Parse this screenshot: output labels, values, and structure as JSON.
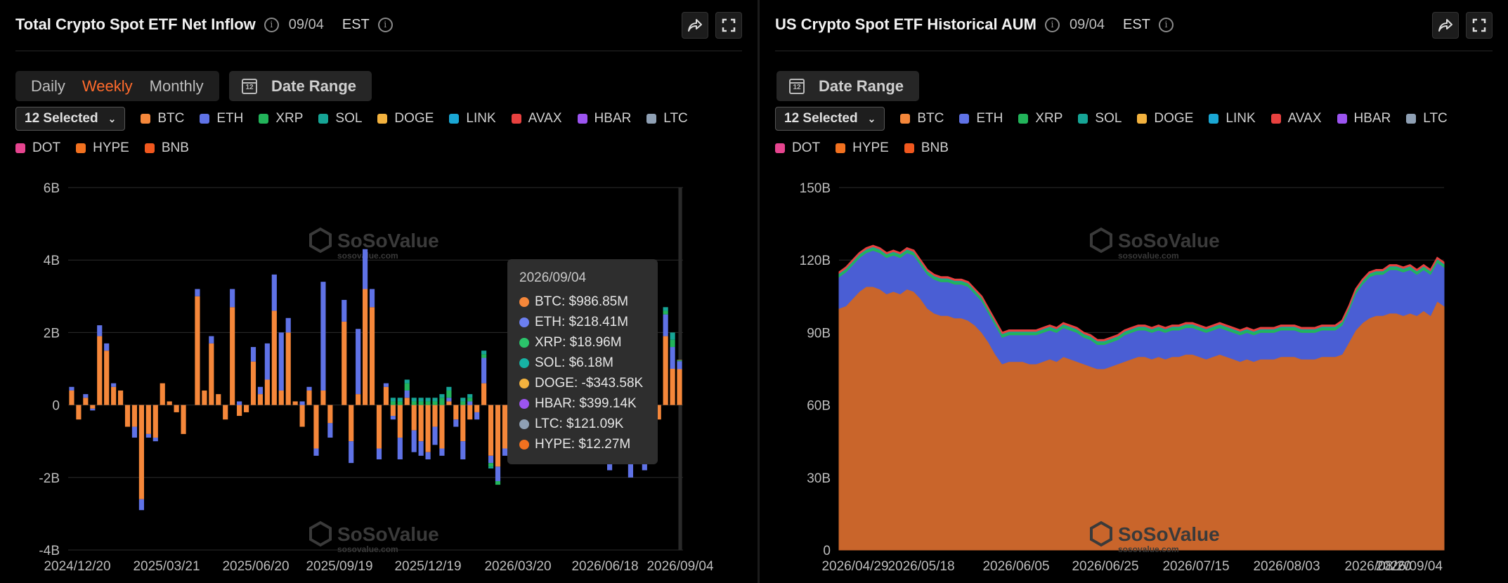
{
  "left_panel": {
    "title": "Total Crypto Spot ETF Net Inflow",
    "date": "09/04",
    "timezone": "EST",
    "tabs": [
      {
        "label": "Daily",
        "active": false
      },
      {
        "label": "Weekly",
        "active": true
      },
      {
        "label": "Monthly",
        "active": false
      }
    ],
    "date_range_label": "Date Range",
    "selector_label": "12 Selected",
    "watermark": "SoSoValue",
    "watermark_sub": "sosovalue.com",
    "tooltip": {
      "date": "2026/09/04",
      "rows": [
        {
          "label": "BTC: $986.85M",
          "color": "#f5873a"
        },
        {
          "label": "ETH: $218.41M",
          "color": "#6c7ff0"
        },
        {
          "label": "XRP: $18.96M",
          "color": "#2bc46b"
        },
        {
          "label": "SOL: $6.18M",
          "color": "#17b3a5"
        },
        {
          "label": "DOGE: -$343.58K",
          "color": "#f3b23e"
        },
        {
          "label": "HBAR: $399.14K",
          "color": "#9c54f0"
        },
        {
          "label": "LTC: $121.09K",
          "color": "#8fa0b4"
        },
        {
          "label": "HYPE: $12.27M",
          "color": "#f2711f"
        }
      ]
    }
  },
  "right_panel": {
    "title": "US Crypto Spot ETF Historical AUM",
    "date": "09/04",
    "timezone": "EST",
    "date_range_label": "Date Range",
    "selector_label": "12 Selected",
    "watermark": "SoSoValue",
    "watermark_sub": "sosovalue.com"
  },
  "legend": [
    {
      "label": "BTC",
      "color": "#f5873a"
    },
    {
      "label": "ETH",
      "color": "#5f72e6"
    },
    {
      "label": "XRP",
      "color": "#22b45a"
    },
    {
      "label": "SOL",
      "color": "#16a596"
    },
    {
      "label": "DOGE",
      "color": "#f3b23e"
    },
    {
      "label": "LINK",
      "color": "#1aa7d4"
    },
    {
      "label": "AVAX",
      "color": "#e8413f"
    },
    {
      "label": "HBAR",
      "color": "#9c54f0"
    },
    {
      "label": "LTC",
      "color": "#8fa0b4"
    },
    {
      "label": "DOT",
      "color": "#e6448f"
    },
    {
      "label": "HYPE",
      "color": "#f2711f"
    },
    {
      "label": "BNB",
      "color": "#f1581e"
    }
  ],
  "chart_data": [
    {
      "type": "bar",
      "stacked": true,
      "title": "Total Crypto Spot ETF Net Inflow",
      "ylim": [
        -4,
        6
      ],
      "yticks": [
        "6B",
        "4B",
        "2B",
        "0",
        "-2B",
        "-4B"
      ],
      "xticks": [
        "2024/12/20",
        "2025/03/21",
        "2025/06/20",
        "2025/09/19",
        "2025/12/19",
        "2026/03/20",
        "2026/06/18",
        "2026/09/04"
      ],
      "grid": true,
      "highlighted_category": "2026/09/04",
      "series": [
        {
          "name": "BTC",
          "color": "#f5873a",
          "values": [
            0.4,
            -0.4,
            0.2,
            -0.1,
            1.9,
            1.5,
            0.5,
            0.4,
            -0.6,
            -0.6,
            -2.6,
            -0.8,
            -0.9,
            0.6,
            0.1,
            -0.2,
            -0.8,
            0.0,
            3.0,
            0.4,
            1.7,
            0.3,
            -0.4,
            2.7,
            -0.3,
            -0.2,
            1.2,
            0.3,
            0.7,
            2.6,
            0.4,
            2.0,
            0.1,
            -0.6,
            0.4,
            -1.2,
            0.4,
            -0.5,
            0.0,
            2.3,
            -1.0,
            0.3,
            3.2,
            2.7,
            -1.2,
            0.5,
            -0.3,
            -0.9,
            0.2,
            -0.7,
            -1.0,
            -1.3,
            -0.6,
            -1.2,
            0.1,
            -0.4,
            -1.0,
            -0.4,
            -0.2,
            0.6,
            -1.4,
            -1.7,
            -1.2,
            -0.2,
            -0.5,
            -0.3,
            -0.5,
            -0.1,
            0.6,
            0.5,
            0.2,
            -0.1,
            0.4,
            0.3,
            -0.6,
            -0.5,
            0.2,
            -1.5,
            0.8,
            -0.6,
            -1.6,
            0.7,
            -1.2,
            0.3,
            -0.4,
            1.9,
            1.0,
            0.99
          ]
        },
        {
          "name": "ETH",
          "color": "#5f72e6",
          "values": [
            0.1,
            0.0,
            0.1,
            -0.05,
            0.3,
            0.2,
            0.1,
            0.0,
            0.0,
            -0.3,
            -0.3,
            -0.1,
            -0.1,
            0.0,
            0.0,
            0.0,
            0.0,
            0.0,
            0.2,
            0.0,
            0.2,
            0.0,
            0.0,
            0.5,
            0.1,
            0.0,
            0.4,
            0.2,
            1.0,
            1.0,
            1.6,
            0.4,
            0.0,
            0.1,
            0.1,
            -0.2,
            3.0,
            -0.4,
            0.0,
            0.6,
            -0.6,
            1.8,
            1.1,
            0.5,
            -0.3,
            0.1,
            -0.1,
            -0.6,
            0.2,
            -0.6,
            -0.4,
            -0.2,
            -0.5,
            -0.2,
            0.1,
            -0.2,
            -0.5,
            0.1,
            -0.2,
            0.7,
            -0.2,
            -0.4,
            -0.2,
            -0.2,
            -0.1,
            -0.2,
            -0.2,
            0.0,
            0.1,
            0.1,
            0.0,
            -0.1,
            0.1,
            0.1,
            -0.2,
            -0.2,
            0.1,
            -0.3,
            0.2,
            -0.2,
            -0.4,
            0.1,
            -0.6,
            0.0,
            0.0,
            0.6,
            0.6,
            0.22
          ]
        },
        {
          "name": "XRP",
          "color": "#22b45a",
          "values": [
            0,
            0,
            0,
            0,
            0,
            0,
            0,
            0,
            0,
            0,
            0,
            0,
            0,
            0,
            0,
            0,
            0,
            0,
            0,
            0,
            0,
            0,
            0,
            0,
            0,
            0,
            0,
            0,
            0,
            0,
            0,
            0,
            0,
            0,
            0,
            0,
            0,
            0,
            0,
            0,
            0,
            0,
            0,
            0,
            0,
            0,
            0.1,
            0.1,
            0.2,
            0.1,
            0.1,
            0.1,
            0.1,
            0.2,
            0.2,
            0.0,
            0.1,
            0.1,
            0.0,
            0.1,
            -0.1,
            -0.1,
            0.0,
            0.0,
            0.0,
            0.0,
            0.0,
            0.0,
            0.0,
            0.0,
            0.0,
            0.0,
            0.0,
            0.0,
            0.0,
            0.0,
            0.0,
            0.0,
            0.0,
            0.0,
            0.0,
            0.0,
            0.0,
            0.0,
            0.0,
            0.1,
            0.2,
            0.02
          ]
        },
        {
          "name": "SOL",
          "color": "#16a596",
          "values": [
            0,
            0,
            0,
            0,
            0,
            0,
            0,
            0,
            0,
            0,
            0,
            0,
            0,
            0,
            0,
            0,
            0,
            0,
            0,
            0,
            0,
            0,
            0,
            0,
            0,
            0,
            0,
            0,
            0,
            0,
            0,
            0,
            0,
            0,
            0,
            0,
            0,
            0,
            0,
            0,
            0,
            0,
            0,
            0,
            0,
            0,
            0.1,
            0.1,
            0.1,
            0.1,
            0.1,
            0.1,
            0.1,
            0.1,
            0.1,
            0.0,
            0.1,
            0.1,
            0.0,
            0.1,
            -0.05,
            0.0,
            0.0,
            0.0,
            0.0,
            0.0,
            0.0,
            0.0,
            0.0,
            0.0,
            0.0,
            0.0,
            0.0,
            0.0,
            0.0,
            0.0,
            0.0,
            0.0,
            0.0,
            0.0,
            0.0,
            0.0,
            0.0,
            0.0,
            0.0,
            0.1,
            0.2,
            0.01
          ]
        },
        {
          "name": "HYPE",
          "color": "#f2711f",
          "values": [
            0,
            0,
            0,
            0,
            0,
            0,
            0,
            0,
            0,
            0,
            0,
            0,
            0,
            0,
            0,
            0,
            0,
            0,
            0,
            0,
            0,
            0,
            0,
            0,
            0,
            0,
            0,
            0,
            0,
            0,
            0,
            0,
            0,
            0,
            0,
            0,
            0,
            0,
            0,
            0,
            0,
            0,
            0,
            0,
            0,
            0,
            0,
            0,
            0,
            0,
            0,
            0,
            0,
            0,
            0,
            0,
            0,
            0,
            0,
            0,
            0,
            0,
            0,
            0,
            0,
            0,
            0,
            0,
            0,
            0,
            0,
            0,
            0,
            0,
            0,
            0,
            0,
            0,
            0,
            0,
            0,
            0,
            0,
            0,
            0,
            0,
            0,
            0.01
          ]
        }
      ]
    },
    {
      "type": "area",
      "stacked": true,
      "title": "US Crypto Spot ETF Historical AUM",
      "ylim": [
        0,
        150
      ],
      "yticks": [
        "150B",
        "120B",
        "90B",
        "60B",
        "30B",
        "0"
      ],
      "xticks": [
        "2026/04/29",
        "2026/05/18",
        "2026/06/05",
        "2026/06/25",
        "2026/07/15",
        "2026/08/03",
        "2026/08/20",
        "2026/09/04"
      ],
      "grid": true,
      "series": [
        {
          "name": "BTC",
          "color": "#c9652b",
          "values": [
            100,
            101,
            104,
            107,
            109,
            109,
            108,
            106,
            107,
            106,
            108,
            107,
            104,
            100,
            98,
            97,
            97,
            96,
            96,
            95,
            93,
            90,
            86,
            81,
            77,
            78,
            78,
            78,
            77,
            77,
            78,
            79,
            78,
            80,
            79,
            78,
            77,
            76,
            75,
            75,
            76,
            77,
            78,
            79,
            80,
            80,
            79,
            80,
            79,
            80,
            80,
            81,
            81,
            80,
            79,
            80,
            81,
            80,
            79,
            78,
            79,
            78,
            79,
            79,
            79,
            80,
            80,
            80,
            79,
            79,
            79,
            80,
            80,
            80,
            81,
            86,
            91,
            94,
            96,
            97,
            97,
            98,
            98,
            97,
            98,
            97,
            99,
            97,
            103,
            101
          ]
        },
        {
          "name": "ETH",
          "color": "#4a5ed4",
          "values": [
            13,
            14,
            14,
            14,
            14,
            15,
            15,
            15,
            15,
            15,
            15,
            15,
            14,
            14,
            14,
            14,
            14,
            14,
            14,
            14,
            13,
            13,
            12,
            12,
            11,
            11,
            11,
            11,
            12,
            12,
            12,
            12,
            12,
            12,
            12,
            12,
            11,
            11,
            10,
            10,
            10,
            10,
            11,
            11,
            11,
            11,
            11,
            11,
            11,
            11,
            11,
            11,
            11,
            11,
            11,
            11,
            11,
            11,
            11,
            11,
            11,
            11,
            11,
            11,
            11,
            11,
            11,
            11,
            11,
            11,
            11,
            11,
            11,
            11,
            12,
            13,
            15,
            16,
            17,
            17,
            17,
            18,
            18,
            18,
            18,
            17,
            17,
            17,
            16,
            16
          ]
        },
        {
          "name": "XRP",
          "color": "#22b45a",
          "values": [
            1,
            1,
            1,
            1,
            1,
            1,
            1,
            1,
            1,
            1,
            1,
            1,
            1,
            1,
            1,
            1,
            1,
            1,
            1,
            1,
            1,
            1,
            1,
            1,
            1,
            1,
            1,
            1,
            1,
            1,
            1,
            1,
            1,
            1,
            1,
            1,
            1,
            1,
            1,
            1,
            1,
            1,
            1,
            1,
            1,
            1,
            1,
            1,
            1,
            1,
            1,
            1,
            1,
            1,
            1,
            1,
            1,
            1,
            1,
            1,
            1,
            1,
            1,
            1,
            1,
            1,
            1,
            1,
            1,
            1,
            1,
            1,
            1,
            1,
            1,
            1,
            1,
            1,
            1,
            1,
            1,
            1,
            1,
            1,
            1,
            1,
            1,
            1,
            1,
            1
          ]
        },
        {
          "name": "SOL",
          "color": "#16a596",
          "values": [
            0.5,
            0.5,
            0.5,
            0.5,
            0.5,
            0.5,
            0.5,
            0.5,
            0.5,
            0.5,
            0.5,
            0.5,
            0.5,
            0.5,
            0.5,
            0.5,
            0.5,
            0.5,
            0.5,
            0.5,
            0.5,
            0.5,
            0.5,
            0.5,
            0.5,
            0.5,
            0.5,
            0.5,
            0.5,
            0.5,
            0.5,
            0.5,
            0.5,
            0.5,
            0.5,
            0.5,
            0.5,
            0.5,
            0.5,
            0.5,
            0.5,
            0.5,
            0.5,
            0.5,
            0.5,
            0.5,
            0.5,
            0.5,
            0.5,
            0.5,
            0.5,
            0.5,
            0.5,
            0.5,
            0.5,
            0.5,
            0.5,
            0.5,
            0.5,
            0.5,
            0.5,
            0.5,
            0.5,
            0.5,
            0.5,
            0.5,
            0.5,
            0.5,
            0.5,
            0.5,
            0.5,
            0.5,
            0.5,
            0.5,
            0.5,
            0.5,
            0.5,
            0.5,
            0.5,
            0.5,
            0.5,
            0.5,
            0.5,
            0.5,
            0.5,
            0.5,
            0.5,
            0.5,
            0.5,
            0.5
          ]
        },
        {
          "name": "HYPE",
          "color": "#e8413f",
          "values": [
            0.5,
            0.5,
            0.5,
            0.5,
            0.5,
            0.5,
            0.5,
            0.5,
            0.5,
            0.5,
            0.5,
            0.5,
            0.5,
            0.5,
            0.5,
            0.5,
            0.5,
            0.5,
            0.5,
            0.5,
            0.5,
            0.5,
            0.5,
            0.5,
            0.5,
            0.5,
            0.5,
            0.5,
            0.5,
            0.5,
            0.5,
            0.5,
            0.5,
            0.5,
            0.5,
            0.5,
            0.5,
            0.5,
            0.5,
            0.5,
            0.5,
            0.5,
            0.5,
            0.5,
            0.5,
            0.5,
            0.5,
            0.5,
            0.5,
            0.5,
            0.5,
            0.5,
            0.5,
            0.5,
            0.5,
            0.5,
            0.5,
            0.5,
            0.5,
            0.5,
            0.5,
            0.5,
            0.5,
            0.5,
            0.5,
            0.5,
            0.5,
            0.5,
            0.5,
            0.5,
            0.5,
            0.5,
            0.5,
            0.5,
            0.5,
            0.5,
            0.5,
            0.5,
            0.5,
            0.5,
            0.5,
            0.5,
            0.5,
            0.5,
            0.5,
            0.5,
            0.5,
            0.5,
            0.5,
            0.5
          ]
        }
      ]
    }
  ]
}
